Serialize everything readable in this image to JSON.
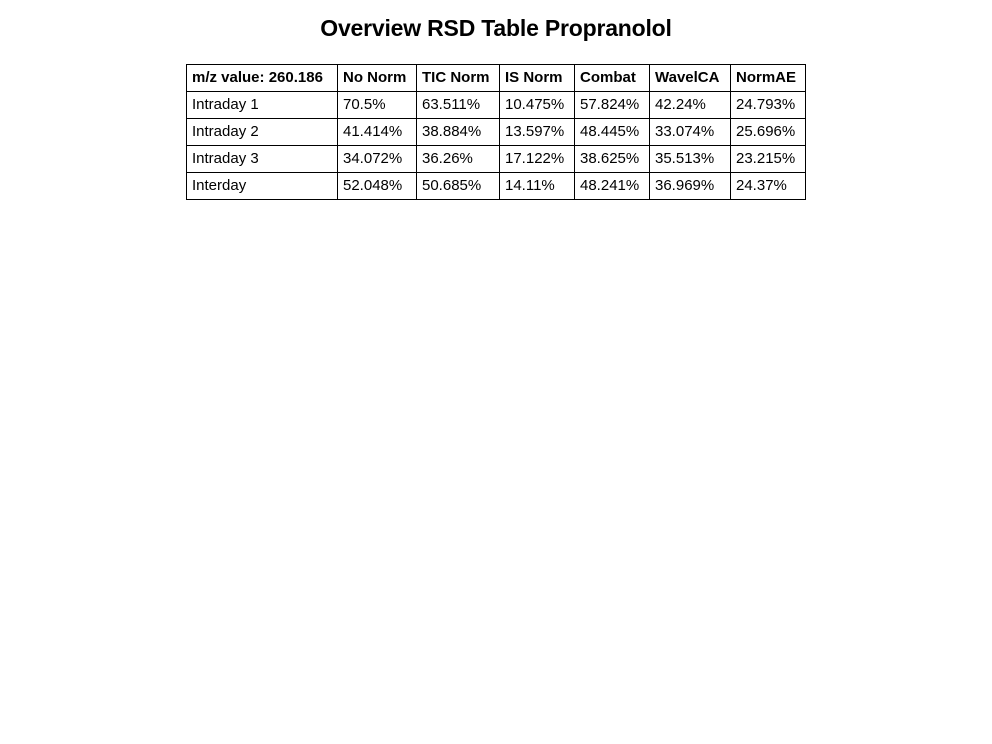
{
  "title": "Overview RSD Table Propranolol",
  "chart_data": {
    "type": "table",
    "title": "Overview RSD Table Propranolol",
    "columns": [
      "m/z value: 260.186",
      "No Norm",
      "TIC Norm",
      "IS Norm",
      "Combat",
      "WavelCA",
      "NormAE"
    ],
    "rows": [
      [
        "Intraday 1",
        "70.5%",
        "63.511%",
        "10.475%",
        "57.824%",
        "42.24%",
        "24.793%"
      ],
      [
        "Intraday 2",
        "41.414%",
        "38.884%",
        "13.597%",
        "48.445%",
        "33.074%",
        "25.696%"
      ],
      [
        "Intraday 3",
        "34.072%",
        "36.26%",
        "17.122%",
        "38.625%",
        "35.513%",
        "23.215%"
      ],
      [
        "Interday",
        "52.048%",
        "50.685%",
        "14.11%",
        "48.241%",
        "36.969%",
        "24.37%"
      ]
    ]
  }
}
